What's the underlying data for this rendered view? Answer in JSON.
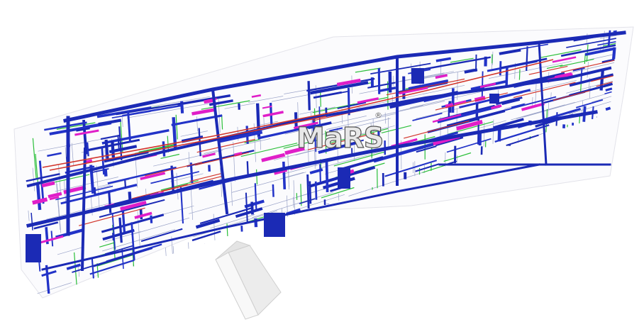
{
  "logo": {
    "text": "MaRS",
    "mark": "®"
  },
  "colors": {
    "background": "#ffffff",
    "duct_primary": "#1b2ab5",
    "duct_secondary": "#2233c8",
    "pipe_green": "#2bbf3a",
    "pipe_red": "#d2352b",
    "pipe_magenta": "#e01ec8",
    "pipe_light": "#9aa3c8",
    "slab_outline": "#d8d8e0",
    "building_fill": "#f4f4f4",
    "building_edge": "#cfcfcf"
  }
}
